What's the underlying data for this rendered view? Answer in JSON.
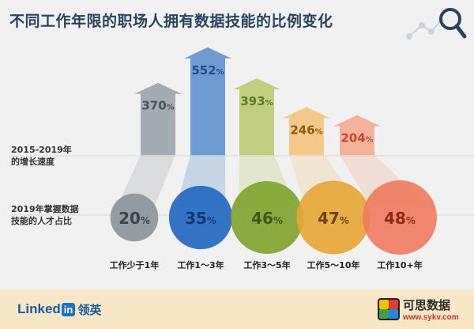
{
  "title": "不同工作年限的职场人拥有数据技能的比例变化",
  "row_labels": {
    "growth": [
      "2015-2019年",
      "的增长速度"
    ],
    "share": [
      "2019年掌握数据",
      "技能的人才占比"
    ]
  },
  "footer": {
    "brand_en": "Linked",
    "brand_in": "in",
    "brand_cn": "领英",
    "watermark": "可思数据",
    "watermark_url": "www.sykv.com"
  },
  "colors": {
    "title": "#2a4360",
    "background": "#f1f1f1",
    "footer_band": "#f8e7c7"
  },
  "chart_data": [
    {
      "type": "bar",
      "title": "不同工作年限的职场人拥有数据技能的比例变化",
      "row_label": "2015-2019年的增长速度",
      "categories": [
        "工作少于1年",
        "工作1～3年",
        "工作3～5年",
        "工作5～10年",
        "工作10+年"
      ],
      "values": [
        370,
        552,
        393,
        246,
        204
      ],
      "unit": "%",
      "colors": [
        "#9aa0a8",
        "#5b8fcd",
        "#b9c870",
        "#f2c27a",
        "#f4a990"
      ],
      "label_colors": [
        "#4a4f58",
        "#1d4f8a",
        "#5b7a22",
        "#8a5a12",
        "#c24a2a"
      ],
      "ylim": [
        0,
        600
      ]
    },
    {
      "type": "bubble",
      "row_label": "2019年掌握数据技能的人才占比",
      "categories": [
        "工作少于1年",
        "工作1～3年",
        "工作3～5年",
        "工作5～10年",
        "工作10+年"
      ],
      "values": [
        20,
        35,
        46,
        47,
        48
      ],
      "unit": "%",
      "colors": [
        "#8c929b",
        "#2066bf",
        "#7ea22c",
        "#e7a534",
        "#f07a5e"
      ],
      "label_colors": [
        "#3d4249",
        "#0d3a73",
        "#3e5a12",
        "#6b4306",
        "#8e2a14"
      ]
    }
  ]
}
